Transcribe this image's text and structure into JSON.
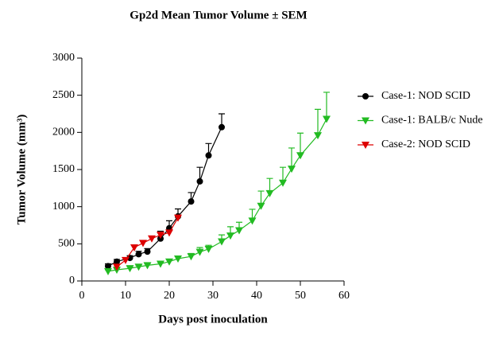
{
  "chart_data": {
    "type": "line",
    "title": "Gp2d Mean Tumor Volume ± SEM",
    "x_label": "Days post inoculation",
    "y_label": "Tumor Volume (mm³)",
    "xlim": [
      0,
      60
    ],
    "xticks": [
      0,
      10,
      20,
      30,
      40,
      50,
      60
    ],
    "ylim": [
      0,
      3000
    ],
    "yticks": [
      0,
      500,
      1000,
      1500,
      2000,
      2500,
      3000
    ],
    "series": [
      {
        "name": "Case-1: NOD SCID",
        "color": "#000000",
        "marker": "circle",
        "x": [
          6,
          8,
          11,
          13,
          15,
          18,
          20,
          22,
          25,
          27,
          29,
          32
        ],
        "values": [
          200,
          260,
          310,
          360,
          395,
          570,
          710,
          870,
          1070,
          1340,
          1690,
          2070
        ],
        "errors": [
          30,
          30,
          30,
          40,
          40,
          100,
          100,
          100,
          120,
          190,
          160,
          180
        ]
      },
      {
        "name": "Case-1: BALB/c Nude",
        "color": "#22bb22",
        "marker": "triangle-down",
        "x": [
          6,
          8,
          11,
          13,
          15,
          18,
          20,
          22,
          25,
          27,
          29,
          32,
          34,
          36,
          39,
          41,
          43,
          46,
          48,
          50,
          54,
          56
        ],
        "values": [
          130,
          150,
          170,
          190,
          210,
          230,
          260,
          300,
          330,
          390,
          430,
          530,
          610,
          680,
          810,
          1010,
          1180,
          1320,
          1510,
          1690,
          1960,
          2180
        ],
        "errors": [
          20,
          20,
          20,
          20,
          20,
          20,
          30,
          30,
          40,
          60,
          50,
          90,
          120,
          110,
          155,
          200,
          200,
          210,
          280,
          300,
          350,
          360
        ]
      },
      {
        "name": "Case-2: NOD SCID",
        "color": "#dd0000",
        "marker": "triangle-down",
        "x": [
          8,
          10,
          12,
          14,
          16,
          18,
          20,
          22
        ],
        "values": [
          190,
          280,
          450,
          510,
          570,
          620,
          650,
          850
        ],
        "errors": [
          30,
          30,
          30,
          30,
          30,
          30,
          30,
          30
        ]
      }
    ]
  }
}
